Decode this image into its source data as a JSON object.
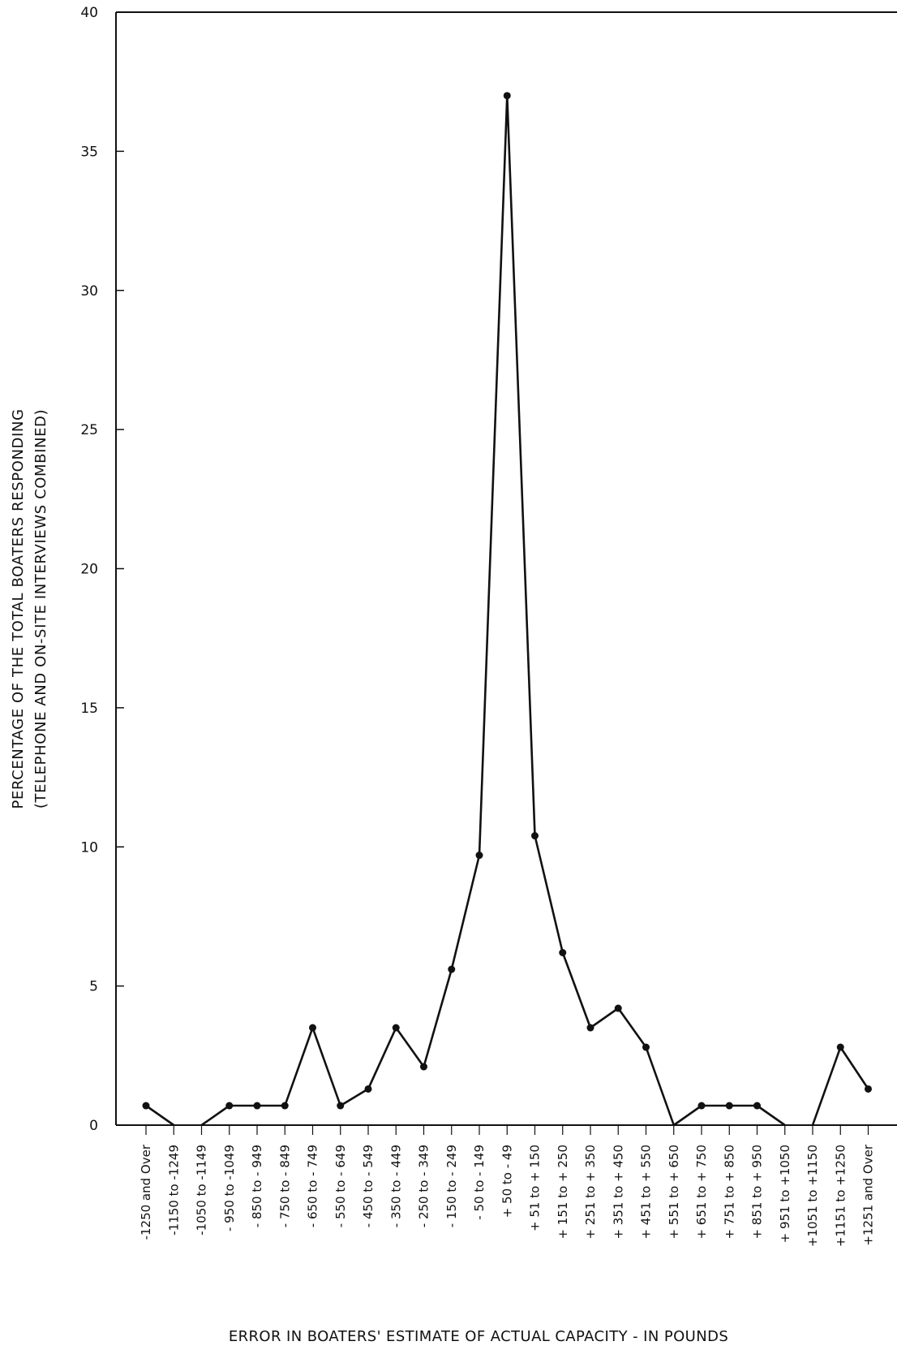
{
  "chart_data": {
    "type": "line",
    "title": "",
    "ylabel_line1": "PERCENTAGE OF THE TOTAL BOATERS RESPONDING",
    "ylabel_line2": "(TELEPHONE AND ON-SITE INTERVIEWS COMBINED)",
    "xlabel": "ERROR IN BOATERS' ESTIMATE OF ACTUAL CAPACITY - IN POUNDS",
    "ylim": [
      0,
      40
    ],
    "yticks": [
      0,
      5,
      10,
      15,
      20,
      25,
      30,
      35,
      40
    ],
    "grid": false,
    "categories": [
      "-1250 and Over",
      "-1150 to -1249",
      "-1050 to -1149",
      "- 950 to -1049",
      "- 850 to - 949",
      "- 750 to - 849",
      "- 650 to - 749",
      "- 550 to - 649",
      "- 450 to - 549",
      "- 350 to - 449",
      "- 250 to - 349",
      "- 150 to - 249",
      "- 50 to - 149",
      "+ 50 to - 49",
      "+ 51 to + 150",
      "+ 151 to + 250",
      "+ 251 to + 350",
      "+ 351 to + 450",
      "+ 451 to + 550",
      "+ 551 to + 650",
      "+ 651 to + 750",
      "+ 751 to + 850",
      "+ 851 to + 950",
      "+ 951 to +1050",
      "+1051 to +1150",
      "+1151 to +1250",
      "+1251 and Over"
    ],
    "segments": [
      {
        "indices": [
          0,
          1
        ],
        "values": [
          0.7,
          0.0
        ]
      },
      {
        "indices": [
          2,
          3,
          4,
          5,
          6,
          7,
          8,
          9,
          10,
          11,
          12,
          13,
          14,
          15,
          16,
          17,
          18,
          19,
          20,
          21,
          22,
          23
        ],
        "values": [
          0.0,
          0.7,
          0.7,
          0.7,
          3.5,
          0.7,
          1.3,
          3.5,
          2.1,
          5.6,
          9.7,
          37.0,
          10.4,
          6.2,
          3.5,
          4.2,
          2.8,
          0.0,
          0.7,
          0.7,
          0.7,
          0.0
        ]
      },
      {
        "indices": [
          24,
          25,
          26
        ],
        "values": [
          0.0,
          2.8,
          1.3
        ]
      }
    ],
    "markers": [
      {
        "index": 0,
        "value": 0.7
      },
      {
        "index": 3,
        "value": 0.7
      },
      {
        "index": 4,
        "value": 0.7
      },
      {
        "index": 5,
        "value": 0.7
      },
      {
        "index": 6,
        "value": 3.5
      },
      {
        "index": 7,
        "value": 0.7
      },
      {
        "index": 8,
        "value": 1.3
      },
      {
        "index": 9,
        "value": 3.5
      },
      {
        "index": 10,
        "value": 2.1
      },
      {
        "index": 11,
        "value": 5.6
      },
      {
        "index": 12,
        "value": 9.7
      },
      {
        "index": 13,
        "value": 37.0
      },
      {
        "index": 14,
        "value": 10.4
      },
      {
        "index": 15,
        "value": 6.2
      },
      {
        "index": 16,
        "value": 3.5
      },
      {
        "index": 17,
        "value": 4.2
      },
      {
        "index": 18,
        "value": 2.8
      },
      {
        "index": 20,
        "value": 0.7
      },
      {
        "index": 21,
        "value": 0.7
      },
      {
        "index": 22,
        "value": 0.7
      },
      {
        "index": 25,
        "value": 2.8
      },
      {
        "index": 26,
        "value": 1.3
      }
    ]
  }
}
